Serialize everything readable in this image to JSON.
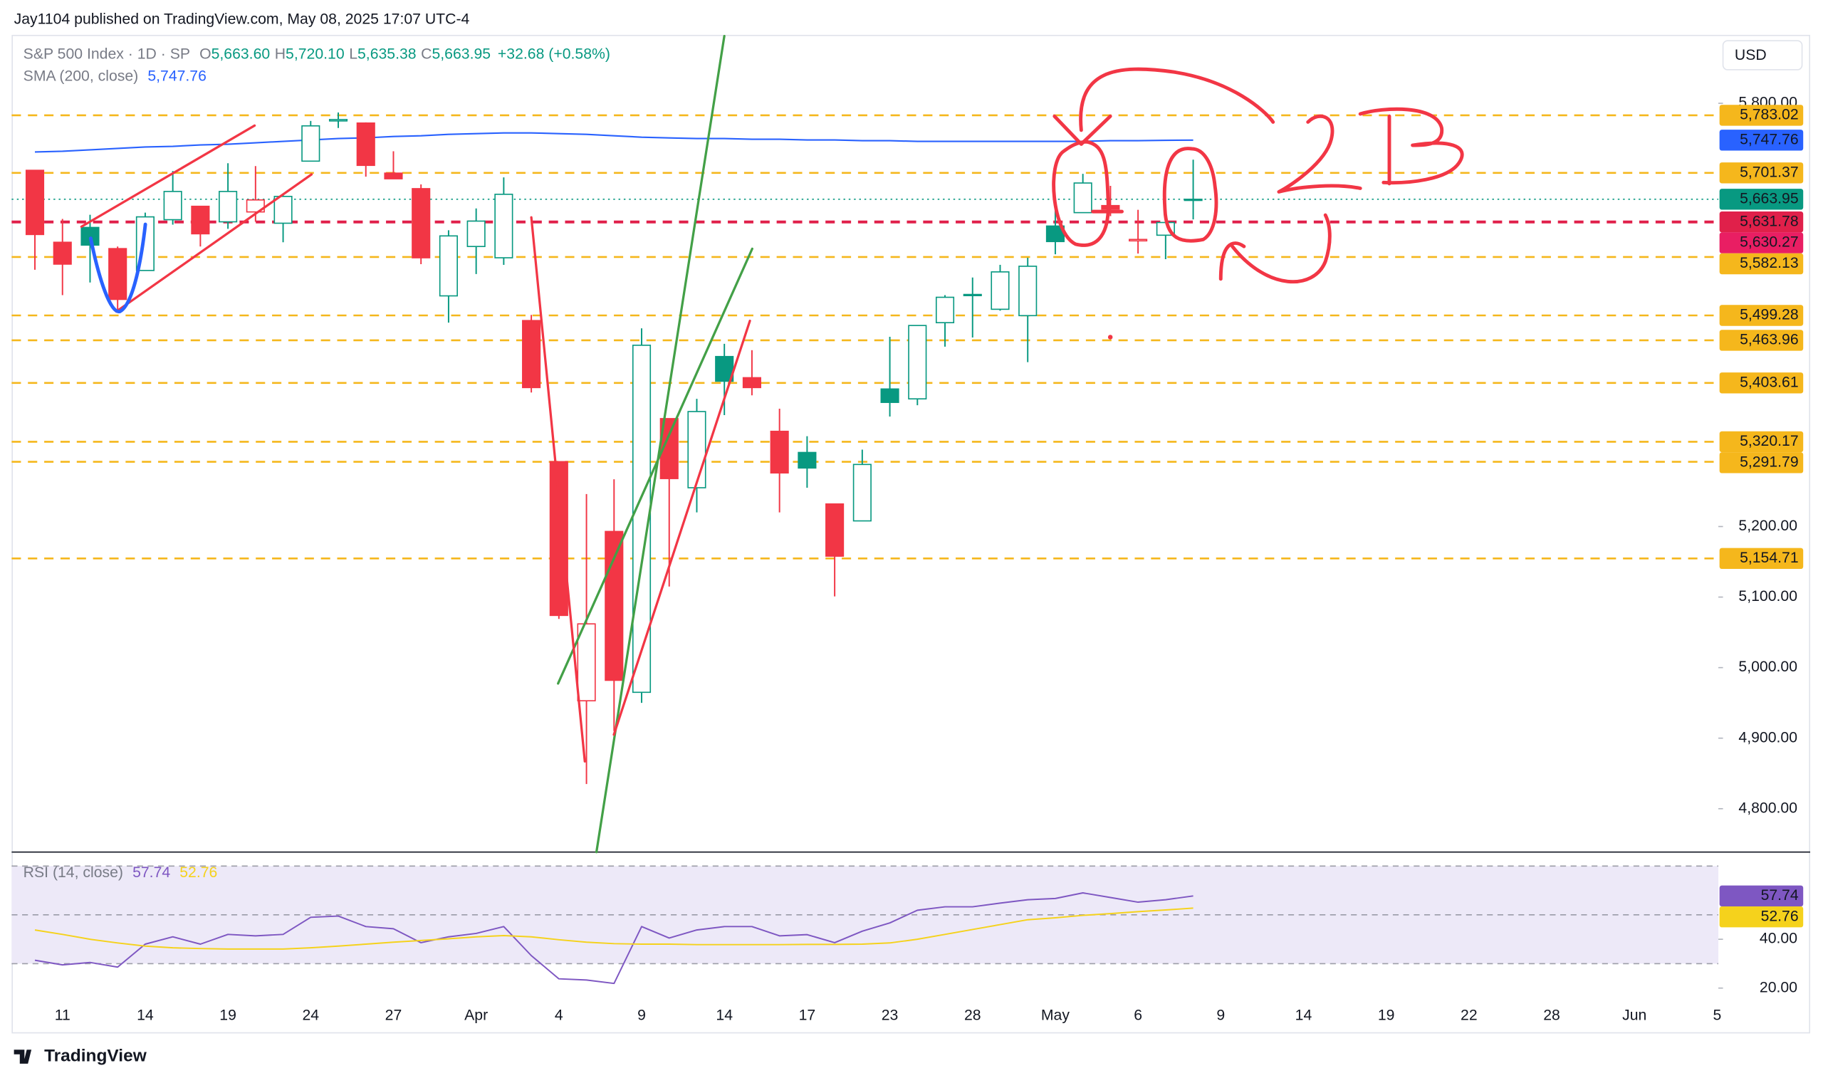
{
  "header": {
    "published": "Jay1104 published on TradingView.com, May 08, 2025 17:07 UTC-4",
    "currency": "USD",
    "brand": "TradingView"
  },
  "legend": {
    "symbol": "S&P 500 Index · 1D · SP",
    "fields": [
      {
        "key": "O",
        "value": "5,663.60"
      },
      {
        "key": "H",
        "value": "5,720.10"
      },
      {
        "key": "L",
        "value": "5,635.38"
      },
      {
        "key": "C",
        "value": "5,663.95"
      }
    ],
    "change": "+32.68 (+0.58%)"
  },
  "chart_data": [
    {
      "type": "candlestick",
      "style": "hollow",
      "up_color": "#089981",
      "down_color": "#f23645",
      "categories": [
        null,
        "11",
        null,
        null,
        "14",
        null,
        null,
        "19",
        null,
        null,
        "24",
        null,
        null,
        "27",
        null,
        null,
        "Apr",
        null,
        null,
        "4",
        null,
        null,
        "9",
        null,
        null,
        "14",
        null,
        null,
        "17",
        null,
        null,
        "23",
        null,
        null,
        "28",
        null,
        null,
        "May",
        null,
        null,
        "6",
        null,
        null,
        "9",
        null,
        null,
        "14",
        null,
        null,
        "19",
        null,
        null,
        "22",
        null,
        null,
        "28",
        null,
        null,
        "Jun",
        null,
        null,
        "5"
      ],
      "open": [
        5705,
        5603,
        5624,
        5594,
        5563,
        5635,
        5654,
        5632,
        5646,
        5630,
        5718,
        5775,
        5772,
        5701,
        5679,
        5527,
        5597,
        5581,
        5492,
        5292,
        4953,
        5193,
        4965,
        5353,
        5255,
        5441,
        5411,
        5335,
        5305,
        5232,
        5208,
        5395,
        5381,
        5489,
        5529,
        5508,
        5499,
        5626,
        5645,
        5655,
        5605,
        5613,
        5663.6,
        null,
        null,
        null,
        null,
        null,
        null,
        null,
        null,
        null,
        null,
        null,
        null,
        null,
        null,
        null,
        null,
        null,
        null,
        null
      ],
      "high": [
        5705,
        5636,
        5642,
        5597,
        5645,
        5704,
        5654,
        5715,
        5711,
        5670,
        5775,
        5787,
        5773,
        5732,
        5685,
        5620,
        5651,
        5695,
        5500,
        5292,
        5246,
        5267,
        5481,
        5353,
        5381,
        5459,
        5450,
        5367,
        5328,
        5232,
        5309,
        5469,
        5485,
        5528,
        5553,
        5571,
        5581,
        5658,
        5700,
        5683,
        5649,
        5654,
        5720.1,
        null,
        null,
        null,
        null,
        null,
        null,
        null,
        null,
        null,
        null,
        null,
        null,
        null,
        null,
        null,
        null,
        null,
        null,
        null
      ],
      "low": [
        5564,
        5528,
        5546,
        5504,
        5563,
        5628,
        5597,
        5622,
        5632,
        5603,
        5718,
        5765,
        5696,
        5694,
        5572,
        5489,
        5558,
        5571,
        5390,
        5069,
        4835,
        4910,
        4950,
        5115,
        5220,
        5358,
        5386,
        5220,
        5255,
        5101,
        5208,
        5356,
        5372,
        5455,
        5468,
        5506,
        5433,
        5586,
        5645,
        5640,
        5587,
        5579,
        5635.38,
        null,
        null,
        null,
        null,
        null,
        null,
        null,
        null,
        null,
        null,
        null,
        null,
        null,
        null,
        null,
        null,
        null,
        null,
        null
      ],
      "close": [
        5614,
        5572,
        5599,
        5522,
        5639,
        5675,
        5615,
        5675,
        5663,
        5668,
        5768,
        5777,
        5712,
        5693,
        5581,
        5612,
        5633,
        5671,
        5397,
        5074,
        5062,
        4982,
        5457,
        5268,
        5363,
        5406,
        5397,
        5276,
        5283,
        5158,
        5288,
        5376,
        5485,
        5525,
        5529,
        5561,
        5569,
        5604,
        5687,
        5650,
        5607,
        5631,
        5663.95,
        null,
        null,
        null,
        null,
        null,
        null,
        null,
        null,
        null,
        null,
        null,
        null,
        null,
        null,
        null,
        null,
        null,
        null,
        null
      ],
      "ylim": [
        4738.5,
        5897
      ],
      "yticks": [
        {
          "value": 5800,
          "label": "5,800.00"
        },
        {
          "value": 5200,
          "label": "5,200.00"
        },
        {
          "value": 5100,
          "label": "5,100.00"
        },
        {
          "value": 5000,
          "label": "5,000.00"
        },
        {
          "value": 4900,
          "label": "4,900.00"
        },
        {
          "value": 4800,
          "label": "4,800.00"
        }
      ],
      "overlays": [
        {
          "name": "SMA (200, close)",
          "color": "#2962ff",
          "values": [
            5731,
            5732,
            5734,
            5736,
            5738,
            5739,
            5741,
            5742,
            5744,
            5746,
            5748,
            5750,
            5751,
            5753,
            5754,
            5756,
            5757,
            5758,
            5758,
            5757,
            5756,
            5754,
            5752,
            5751,
            5750,
            5750,
            5749,
            5749,
            5748,
            5748,
            5747,
            5747,
            5746,
            5746,
            5746,
            5746,
            5746,
            5746,
            5746,
            5747,
            5747,
            5747.5,
            5747.76,
            null,
            null,
            null,
            null,
            null,
            null,
            null,
            null,
            null,
            null,
            null,
            null,
            null,
            null,
            null,
            null,
            null,
            null,
            null
          ],
          "last_label": "5,747.76"
        }
      ],
      "levels": [
        {
          "value": 5783.02,
          "label": "5,783.02",
          "color": "#f5b71c",
          "text_color": "#131722",
          "style": "dashed"
        },
        {
          "value": 5701.37,
          "label": "5,701.37",
          "color": "#f5b71c",
          "text_color": "#131722",
          "style": "dashed"
        },
        {
          "value": 5663.95,
          "label": "5,663.95",
          "color": "#089981",
          "text_color": "#ffffff",
          "style": "dotted"
        },
        {
          "value": 5631.78,
          "label": "5,631.78",
          "color": "#e0204a",
          "text_color": "#ffffff",
          "style": "thick"
        },
        {
          "value": 5630.27,
          "label": "5,630.27",
          "color": "#e91e63",
          "text_color": "#ffffff",
          "style": "none"
        },
        {
          "value": 5582.13,
          "label": "5,582.13",
          "color": "#f5b71c",
          "text_color": "#131722",
          "style": "dashed"
        },
        {
          "value": 5499.28,
          "label": "5,499.28",
          "color": "#f5b71c",
          "text_color": "#131722",
          "style": "dashed"
        },
        {
          "value": 5463.96,
          "label": "5,463.96",
          "color": "#f5b71c",
          "text_color": "#131722",
          "style": "dashed"
        },
        {
          "value": 5403.61,
          "label": "5,403.61",
          "color": "#f5b71c",
          "text_color": "#131722",
          "style": "dashed"
        },
        {
          "value": 5320.17,
          "label": "5,320.17",
          "color": "#f5b71c",
          "text_color": "#131722",
          "style": "dashed"
        },
        {
          "value": 5291.79,
          "label": "5,291.79",
          "color": "#f5b71c",
          "text_color": "#131722",
          "style": "dashed"
        },
        {
          "value": 5154.71,
          "label": "5,154.71",
          "color": "#f5b71c",
          "text_color": "#131722",
          "style": "dashed"
        }
      ]
    },
    {
      "type": "line",
      "series": [
        {
          "name": "RSI (14, close)",
          "color": "#7e57c2",
          "values": [
            31.4,
            29.5,
            30.5,
            28.6,
            38,
            41,
            38,
            42,
            41.4,
            42,
            49,
            49.5,
            45.2,
            44.3,
            38.6,
            41,
            42.4,
            45.2,
            33.3,
            23.8,
            23.3,
            21.9,
            45.2,
            40.5,
            43.8,
            45.2,
            45.2,
            41.4,
            41.9,
            38.6,
            43.3,
            46.7,
            51.9,
            53.3,
            53.3,
            54.8,
            56.2,
            56.7,
            59,
            57.1,
            55.2,
            56.2,
            57.74,
            null,
            null,
            null,
            null,
            null,
            null,
            null,
            null,
            null,
            null,
            null,
            null,
            null,
            null,
            null,
            null,
            null,
            null,
            null
          ],
          "last_label": "57.74"
        },
        {
          "color": "#f5d21c",
          "values": [
            43.8,
            42,
            40,
            38.5,
            37.2,
            36.5,
            36.2,
            36,
            36,
            36,
            36.5,
            37.2,
            38,
            38.8,
            39.5,
            40.2,
            41,
            41.5,
            41,
            39.8,
            38.8,
            38.2,
            38,
            38,
            37.8,
            37.8,
            37.8,
            37.8,
            37.9,
            37.9,
            38,
            38.5,
            40,
            42,
            44,
            46,
            48,
            48.8,
            49.8,
            50.5,
            51.3,
            52,
            52.76,
            null,
            null,
            null,
            null,
            null,
            null,
            null,
            null,
            null,
            null,
            null,
            null,
            null,
            null,
            null,
            null,
            null,
            null,
            null
          ],
          "last_label": "52.76"
        }
      ],
      "ylim": [
        2,
        75
      ],
      "yticks": [
        {
          "value": 40,
          "label": "40.00"
        },
        {
          "value": 20,
          "label": "20.00"
        }
      ],
      "bands": [
        70,
        50,
        30
      ],
      "band_fill": "#ede9f8"
    }
  ]
}
